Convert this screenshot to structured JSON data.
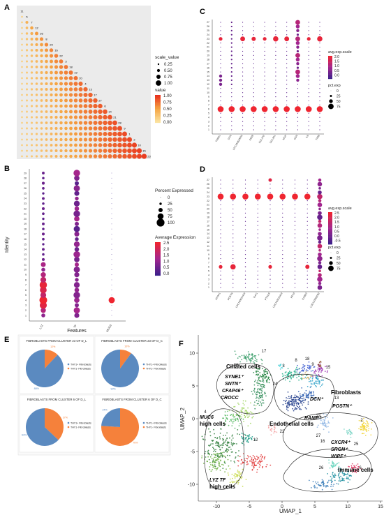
{
  "panels": {
    "A": {
      "letter": "A",
      "grid_n": 27,
      "diag_labels": [
        "11",
        "5",
        "7",
        "12",
        "26",
        "8",
        "29",
        "16",
        "22",
        "3",
        "18",
        "19",
        "20",
        "4",
        "13",
        "17",
        "27",
        "6",
        "14",
        "21",
        "28",
        "9",
        "1",
        "2",
        "10",
        "15",
        "23"
      ],
      "legend_size_title": "scale_value",
      "legend_size_values": [
        "0.25",
        "0.50",
        "0.75",
        "1.00"
      ],
      "legend_color_title": "value",
      "legend_color_values": [
        "1.00",
        "0.75",
        "0.50",
        "0.25",
        "0.00"
      ]
    },
    "B": {
      "letter": "B",
      "ylabel": "Identity",
      "xlabel": "Features",
      "features": [
        "LYZ",
        "TF",
        "MUC6"
      ],
      "identities": [
        "1",
        "2",
        "3",
        "4",
        "5",
        "6",
        "7",
        "8",
        "9",
        "10",
        "11",
        "12",
        "13",
        "14",
        "15",
        "16",
        "17",
        "18",
        "19",
        "20",
        "21",
        "22",
        "23",
        "24",
        "25",
        "26",
        "27",
        "28",
        "29"
      ],
      "legend_size_title": "Percent Expressed",
      "legend_size_values": [
        "0",
        "25",
        "50",
        "75",
        "100"
      ],
      "legend_color_title": "Average Expression",
      "legend_color_values": [
        "2.5",
        "2.0",
        "1.5",
        "1.0",
        "0.5",
        "0.0"
      ]
    },
    "C": {
      "letter": "C",
      "genes": [
        "THBS1",
        "DCN",
        "LOC100620055",
        "FBZB",
        "COL1A2",
        "COL3A1",
        "MGP",
        "GSN",
        "IL6",
        "TIMB"
      ],
      "identities": [
        "1",
        "2",
        "3",
        "4",
        "5",
        "6",
        "7",
        "8",
        "9",
        "10",
        "11",
        "12",
        "13",
        "14",
        "15",
        "16",
        "17",
        "18",
        "19",
        "20",
        "21",
        "22",
        "23",
        "24",
        "25",
        "26",
        "27"
      ],
      "legend_color_title": "avg.exp.scale",
      "legend_color_values": [
        "2.0",
        "1.5",
        "1.0",
        "0.5",
        "0.0"
      ],
      "legend_size_title": "pct.exp",
      "legend_size_values": [
        "0",
        "25",
        "50",
        "75"
      ]
    },
    "D": {
      "letter": "D",
      "genes": [
        "APOA1",
        "POSTN",
        "LOC100624416",
        "THY1",
        "PTGDS",
        "LOC102616419",
        "RPL0",
        "CCBE2",
        "LOC110262082"
      ],
      "identities": [
        "1",
        "2",
        "3",
        "4",
        "5",
        "6",
        "7",
        "8",
        "9",
        "10",
        "11",
        "12",
        "13",
        "14",
        "15",
        "16",
        "17",
        "18",
        "19",
        "20",
        "21",
        "22",
        "23",
        "24",
        "25",
        "26",
        "27"
      ],
      "legend_color_title": "avg.exp.scale",
      "legend_color_values": [
        "2.5",
        "2.0",
        "1.5",
        "1.0",
        "0.5",
        "0.0",
        "-0.5"
      ],
      "legend_size_title": "pct.exp",
      "legend_size_values": [
        "0",
        "25",
        "50",
        "75"
      ]
    },
    "E": {
      "letter": "E",
      "pies": [
        {
          "title": "FIBROBLASTS FROM CLUSTER 23 OF D_L",
          "pos": 0.88,
          "neg": 0.12,
          "pos_label": "THY1+ Fibroblasts",
          "neg_label": "THY1- Fibroblasts",
          "pct_pos": "88%",
          "pct_neg": "12%"
        },
        {
          "title": "FIBROBLASTS FROM CLUSTER 23 OF D_C",
          "pos": 0.9,
          "neg": 0.1,
          "pos_label": "THY1+ Fibroblasts",
          "neg_label": "THY1- Fibroblasts",
          "pct_pos": "90%",
          "pct_neg": "10%"
        },
        {
          "title": "FIBROBLASTS FROM CLUSTER 6 OF D_L",
          "pos": 0.63,
          "neg": 0.37,
          "pos_label": "THY1+ Fibroblasts",
          "neg_label": "THY1- Fibroblasts",
          "pct_pos": "63%",
          "pct_neg": "37%"
        },
        {
          "title": "FIBROBLASTS FROM CLUSTER 6 OF D_C",
          "pos": 0.24,
          "neg": 0.76,
          "pos_label": "THY1+ Fibroblasts",
          "neg_label": "THY1- Fibroblasts",
          "pct_pos": "24%",
          "pct_neg": "76%"
        }
      ]
    },
    "F": {
      "letter": "F",
      "xlabel": "UMAP_1",
      "ylabel": "UMAP_2",
      "xticks": [
        "-10",
        "-5",
        "0",
        "5",
        "10",
        "15"
      ],
      "yticks": [
        "10",
        "5",
        "0",
        "-5",
        "-10"
      ],
      "labels": {
        "ciliated": "Ciliated cells",
        "synel": "SYNE1⁺",
        "sntn": "SNTN⁺",
        "cfap": "CFAP46⁺",
        "crocc": "CROCC",
        "muc6": "MUC6",
        "muc6b": "high cells",
        "lyz": "LYZ TF",
        "lyzb": "high cells",
        "fibro": "Fibroblasts",
        "dcn": "DCN⁺",
        "postn": "POSTN⁺",
        "endo": "Endothelial cells",
        "ramp": "RAMP⁺",
        "immune": "Immune cells",
        "cxcr": "CXCR4⁺",
        "srgn": "SRGN⁺",
        "wipf": "WIPF⁺"
      },
      "cluster_numbers": [
        "17",
        "20",
        "24",
        "4",
        "2",
        "12",
        "22",
        "23",
        "27",
        "25",
        "16",
        "26",
        "13",
        "15",
        "6",
        "3",
        "18",
        "8",
        "9"
      ]
    }
  },
  "colors": {
    "pos": "#5b8ac0",
    "neg": "#f5813b",
    "heat_hi": "#e8202b",
    "heat_mid": "#7b3294",
    "heat_lo": "#3d1f8a"
  }
}
